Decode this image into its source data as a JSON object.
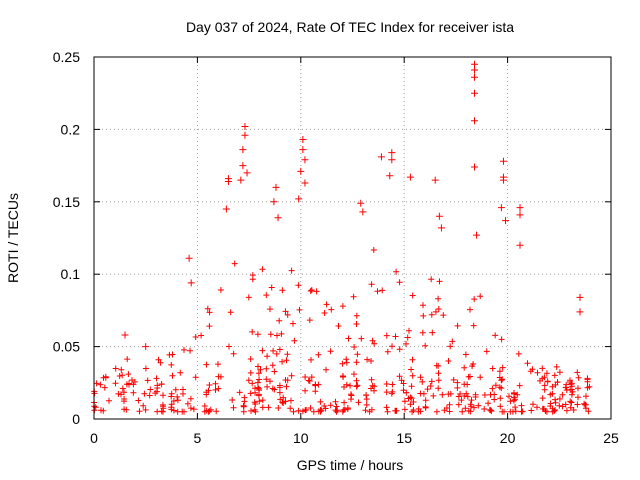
{
  "chart_data": {
    "type": "scatter",
    "title": "Day 037 of 2024, Rate Of TEC Index for receiver ista",
    "xlabel": "GPS time / hours",
    "ylabel": "ROTI / TECUs",
    "xlim": [
      0,
      25
    ],
    "ylim": [
      0,
      0.25
    ],
    "xticks": [
      0,
      5,
      10,
      15,
      20,
      25
    ],
    "yticks": [
      0,
      0.05,
      0.1,
      0.15,
      0.2,
      0.25
    ],
    "xtick_labels": [
      "0",
      "5",
      "10",
      "15",
      "20",
      "25"
    ],
    "ytick_labels": [
      "0",
      "0.05",
      "0.1",
      "0.15",
      "0.2",
      "0.25"
    ],
    "grid": true,
    "marker": "+",
    "series_color": "#ff0000",
    "series": [
      {
        "name": "ROTI",
        "notable_points": [
          {
            "x": 18.4,
            "y": 0.245
          },
          {
            "x": 18.4,
            "y": 0.241
          },
          {
            "x": 18.4,
            "y": 0.236
          },
          {
            "x": 18.4,
            "y": 0.225
          },
          {
            "x": 18.4,
            "y": 0.206
          },
          {
            "x": 18.4,
            "y": 0.174
          },
          {
            "x": 7.3,
            "y": 0.202
          },
          {
            "x": 7.3,
            "y": 0.196
          },
          {
            "x": 7.2,
            "y": 0.186
          },
          {
            "x": 7.2,
            "y": 0.175
          },
          {
            "x": 7.1,
            "y": 0.165
          },
          {
            "x": 7.4,
            "y": 0.17
          },
          {
            "x": 10.1,
            "y": 0.193
          },
          {
            "x": 10.1,
            "y": 0.186
          },
          {
            "x": 10.2,
            "y": 0.179
          },
          {
            "x": 10.0,
            "y": 0.171
          },
          {
            "x": 10.2,
            "y": 0.163
          },
          {
            "x": 9.9,
            "y": 0.152
          },
          {
            "x": 14.4,
            "y": 0.184
          },
          {
            "x": 14.4,
            "y": 0.179
          },
          {
            "x": 14.3,
            "y": 0.168
          },
          {
            "x": 13.9,
            "y": 0.181
          },
          {
            "x": 15.3,
            "y": 0.167
          },
          {
            "x": 16.5,
            "y": 0.165
          },
          {
            "x": 19.8,
            "y": 0.178
          },
          {
            "x": 19.8,
            "y": 0.167
          },
          {
            "x": 19.8,
            "y": 0.165
          },
          {
            "x": 19.7,
            "y": 0.146
          },
          {
            "x": 19.9,
            "y": 0.137
          },
          {
            "x": 8.8,
            "y": 0.16
          },
          {
            "x": 8.7,
            "y": 0.15
          },
          {
            "x": 8.9,
            "y": 0.139
          },
          {
            "x": 6.5,
            "y": 0.166
          },
          {
            "x": 6.5,
            "y": 0.164
          },
          {
            "x": 6.4,
            "y": 0.145
          },
          {
            "x": 20.6,
            "y": 0.146
          },
          {
            "x": 20.6,
            "y": 0.141
          },
          {
            "x": 20.6,
            "y": 0.12
          },
          {
            "x": 18.5,
            "y": 0.127
          },
          {
            "x": 12.9,
            "y": 0.149
          },
          {
            "x": 13.0,
            "y": 0.143
          },
          {
            "x": 16.7,
            "y": 0.14
          },
          {
            "x": 16.8,
            "y": 0.132
          },
          {
            "x": 4.6,
            "y": 0.111
          },
          {
            "x": 4.7,
            "y": 0.094
          },
          {
            "x": 23.5,
            "y": 0.084
          },
          {
            "x": 23.5,
            "y": 0.074
          },
          {
            "x": 1.5,
            "y": 0.058
          },
          {
            "x": 2.5,
            "y": 0.05
          }
        ],
        "activity_envelope": {
          "hours": [
            0,
            1,
            1.5,
            2,
            3,
            4,
            4.5,
            5,
            6,
            6.5,
            7,
            7.5,
            8,
            8.5,
            9,
            9.5,
            10,
            10.5,
            11,
            11.5,
            12,
            12.5,
            13,
            13.5,
            14,
            14.5,
            15,
            15.5,
            16,
            16.5,
            17,
            17.5,
            18,
            18.5,
            19,
            19.5,
            20,
            20.5,
            21,
            21.5,
            22,
            22.5,
            23,
            23.5,
            24
          ],
          "typical_max": [
            0.025,
            0.035,
            0.05,
            0.03,
            0.045,
            0.045,
            0.06,
            0.065,
            0.09,
            0.12,
            0.13,
            0.12,
            0.1,
            0.12,
            0.11,
            0.1,
            0.13,
            0.1,
            0.09,
            0.08,
            0.08,
            0.085,
            0.12,
            0.13,
            0.12,
            0.11,
            0.09,
            0.085,
            0.1,
            0.12,
            0.09,
            0.07,
            0.07,
            0.1,
            0.09,
            0.075,
            0.08,
            0.09,
            0.05,
            0.045,
            0.04,
            0.04,
            0.035,
            0.04,
            0.03
          ],
          "baseline_min": 0.005
        }
      }
    ]
  }
}
